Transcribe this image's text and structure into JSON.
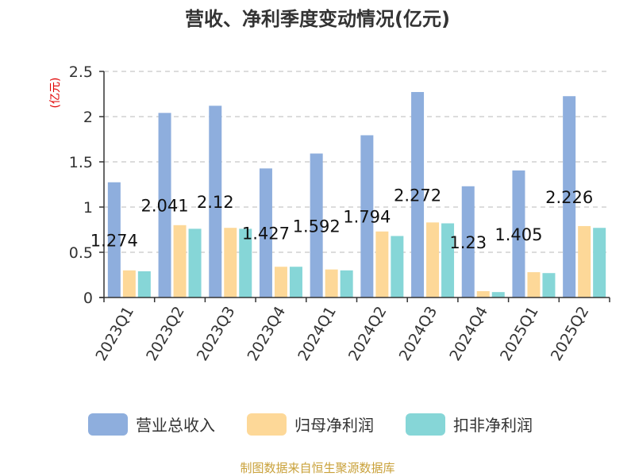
{
  "chart_data": {
    "type": "bar",
    "title": "营收、净利季度变动情况(亿元)",
    "ylabel": "(亿元)",
    "xlabel": "",
    "ylim": [
      0,
      2.5
    ],
    "yticks": [
      0,
      0.5,
      1,
      1.5,
      2,
      2.5
    ],
    "ytick_labels": [
      "0",
      "0.5",
      "1",
      "1.5",
      "2",
      "2.5"
    ],
    "grid": true,
    "legend_position": "bottom",
    "categories": [
      "2023Q1",
      "2023Q2",
      "2023Q3",
      "2023Q4",
      "2024Q1",
      "2024Q2",
      "2024Q3",
      "2024Q4",
      "2025Q1",
      "2025Q2"
    ],
    "series": [
      {
        "name": "营业总收入",
        "color": "#8eaedd",
        "values": [
          1.274,
          2.041,
          2.12,
          1.427,
          1.592,
          1.794,
          2.272,
          1.23,
          1.405,
          2.226
        ],
        "labels": [
          "1.274",
          "2.041",
          "2.12",
          "1.427",
          "1.592",
          "1.794",
          "2.272",
          "1.23",
          "1.405",
          "2.226"
        ]
      },
      {
        "name": "归母净利润",
        "color": "#fdd898",
        "values": [
          0.3,
          0.8,
          0.77,
          0.34,
          0.31,
          0.73,
          0.83,
          0.07,
          0.28,
          0.79
        ]
      },
      {
        "name": "扣非净利润",
        "color": "#86d6d7",
        "values": [
          0.29,
          0.76,
          0.76,
          0.34,
          0.3,
          0.68,
          0.82,
          0.06,
          0.27,
          0.77
        ]
      }
    ]
  },
  "source": "制图数据来自恒生聚源数据库"
}
